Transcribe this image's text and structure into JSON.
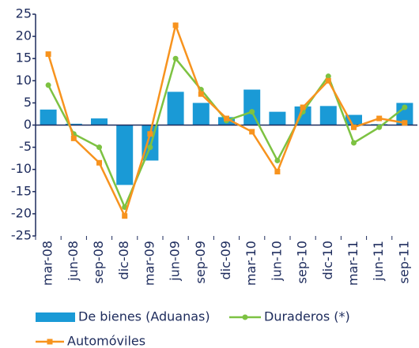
{
  "chart_data": {
    "type": "bar-line",
    "categories": [
      "mar-08",
      "jun-08",
      "sep-08",
      "dic-08",
      "mar-09",
      "jun-09",
      "sep-09",
      "dic-09",
      "mar-10",
      "jun-10",
      "sep-10",
      "dic-10",
      "mar-11",
      "jun-11",
      "sep-11"
    ],
    "series": [
      {
        "name": "De bienes (Aduanas)",
        "type": "bar",
        "color": "#1a9ad6",
        "values": [
          3.5,
          0.3,
          1.5,
          -13.5,
          -8,
          7.5,
          5,
          1.8,
          8,
          3,
          4.2,
          4.3,
          2.3,
          0.2,
          5
        ]
      },
      {
        "name": "Duraderos (*)",
        "type": "line",
        "color": "#7dc242",
        "values": [
          9,
          -2,
          -5,
          -18.5,
          -5,
          15,
          8,
          1,
          3,
          -8,
          3,
          11,
          -4,
          -0.5,
          4
        ]
      },
      {
        "name": "Automóviles",
        "type": "line",
        "color": "#f7931e",
        "values": [
          16,
          -3,
          -8.5,
          -20.5,
          -2,
          22.5,
          7,
          1.5,
          -1.5,
          -10.5,
          4,
          10,
          -0.5,
          1.5,
          0.5
        ]
      }
    ],
    "ylim": [
      -25,
      25
    ],
    "yticks": [
      -25,
      -20,
      -15,
      -10,
      -5,
      0,
      5,
      10,
      15,
      20,
      25
    ],
    "legend": "bottom"
  }
}
